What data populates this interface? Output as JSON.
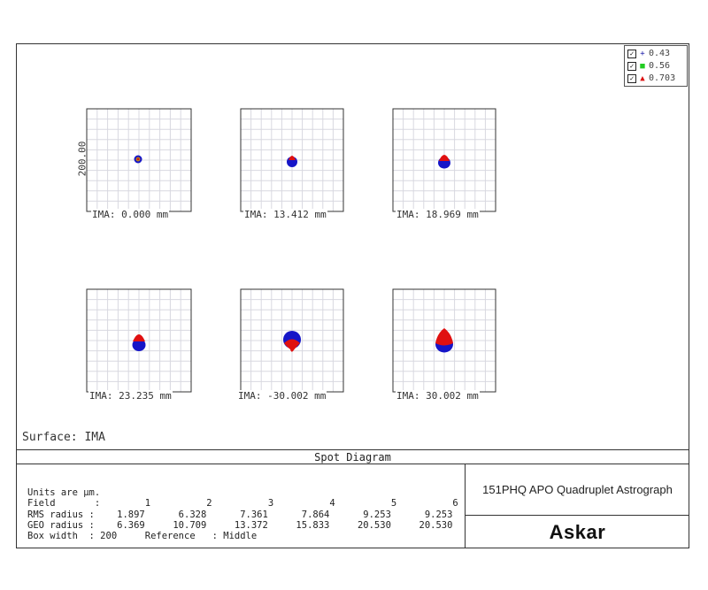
{
  "legend": [
    {
      "label": "0.43",
      "marker": "+",
      "color": "#1a1aa8"
    },
    {
      "label": "0.56",
      "marker": "■",
      "color": "#22cc22"
    },
    {
      "label": "0.703",
      "marker": "▲",
      "color": "#dd1111"
    }
  ],
  "y_axis_label": "200.00",
  "plots": [
    {
      "label": "IMA: 0.000 mm"
    },
    {
      "label": "IMA: 13.412 mm"
    },
    {
      "label": "IMA: 18.969 mm"
    },
    {
      "label": "IMA: 23.235 mm"
    },
    {
      "label": "IMA: -30.002 mm"
    },
    {
      "label": "IMA: 30.002 mm"
    }
  ],
  "surface": "Surface: IMA",
  "diagram_title": "Spot Diagram",
  "info": {
    "units": "Units are µm.",
    "field_row": "Field       :        1          2          3          4          5          6",
    "rms_row": "RMS radius :    1.897      6.328      7.361      7.864      9.253      9.253",
    "geo_row": "GEO radius :    6.369     10.709     13.372     15.833     20.530     20.530",
    "box_row": "Box width  : 200     Reference   : Middle"
  },
  "project_title": "151PHQ APO Quadruplet Astrograph",
  "brand": "Askar",
  "colors": {
    "blue": "#1515c8",
    "red": "#e01010",
    "green": "#22cc22",
    "grid": "#d8d8e0"
  }
}
